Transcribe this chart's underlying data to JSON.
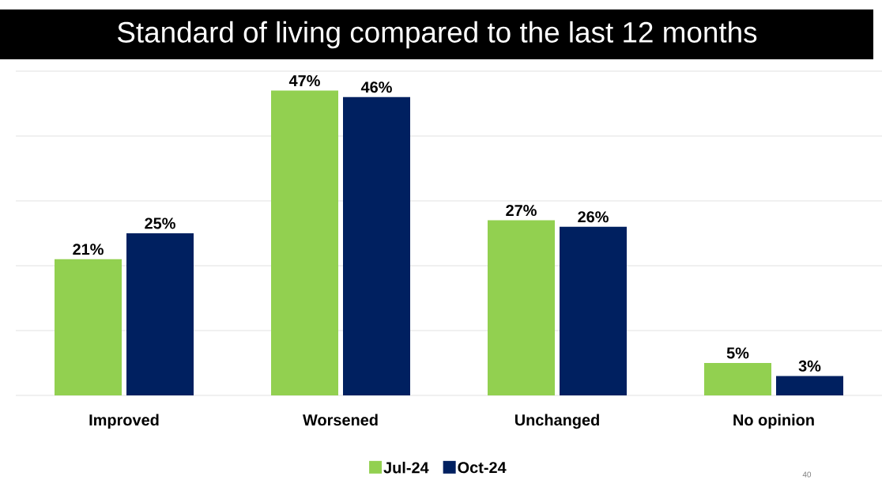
{
  "chart_data": {
    "type": "bar",
    "title": "Standard of living compared to the last 12 months",
    "categories": [
      "Improved",
      "Worsened",
      "Unchanged",
      "No opinion"
    ],
    "series": [
      {
        "name": "Jul-24",
        "color": "#92d050",
        "values": [
          21,
          47,
          27,
          5
        ],
        "value_labels": [
          "21%",
          "47%",
          "27%",
          "5%"
        ]
      },
      {
        "name": "Oct-24",
        "color": "#002060",
        "values": [
          25,
          46,
          26,
          3
        ],
        "value_labels": [
          "25%",
          "46%",
          "26%",
          "3%"
        ]
      }
    ],
    "ylim": [
      0,
      50
    ],
    "yticks": [
      {
        "value": 0,
        "label": null
      },
      {
        "value": 10,
        "label": null
      },
      {
        "value": 20,
        "label": null
      },
      {
        "value": 30,
        "label": null
      },
      {
        "value": 40,
        "label": null
      },
      {
        "value": 50,
        "label": null
      }
    ],
    "grid": "y",
    "tick_labels": "x",
    "legend": "bottom",
    "annotations": [
      "40"
    ]
  }
}
